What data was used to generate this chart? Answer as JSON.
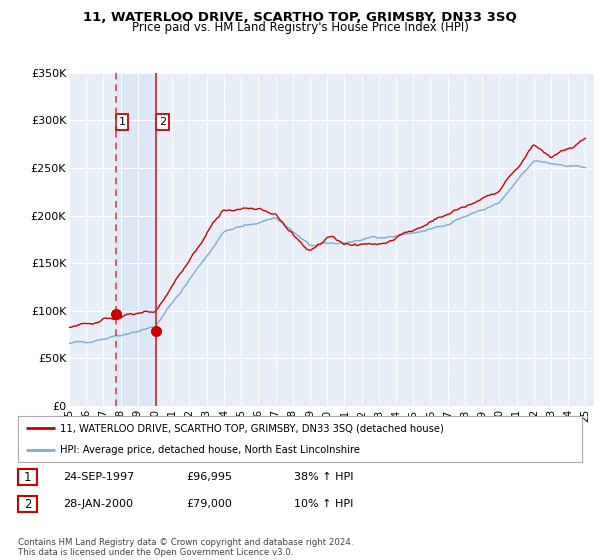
{
  "title": "11, WATERLOO DRIVE, SCARTHO TOP, GRIMSBY, DN33 3SQ",
  "subtitle": "Price paid vs. HM Land Registry's House Price Index (HPI)",
  "ylim": [
    0,
    350000
  ],
  "yticks": [
    0,
    50000,
    100000,
    150000,
    200000,
    250000,
    300000,
    350000
  ],
  "ytick_labels": [
    "£0",
    "£50K",
    "£100K",
    "£150K",
    "£200K",
    "£250K",
    "£300K",
    "£350K"
  ],
  "sale1_date": 1997.73,
  "sale1_price": 96995,
  "sale2_date": 2000.07,
  "sale2_price": 79000,
  "red_line_color": "#cc0000",
  "blue_line_color": "#7aaccc",
  "sale_dot_color": "#cc0000",
  "vline1_color": "#dd4444",
  "vline2_color": "#cc2222",
  "shade_color": "#dce8f5",
  "background_color": "#e8eef8",
  "grid_color": "#ffffff",
  "legend_line1": "11, WATERLOO DRIVE, SCARTHO TOP, GRIMSBY, DN33 3SQ (detached house)",
  "legend_line2": "HPI: Average price, detached house, North East Lincolnshire",
  "table_row1": [
    "1",
    "24-SEP-1997",
    "£96,995",
    "38% ↑ HPI"
  ],
  "table_row2": [
    "2",
    "28-JAN-2000",
    "£79,000",
    "10% ↑ HPI"
  ],
  "footnote": "Contains HM Land Registry data © Crown copyright and database right 2024.\nThis data is licensed under the Open Government Licence v3.0.",
  "xmin": 1995,
  "xmax": 2025.5
}
